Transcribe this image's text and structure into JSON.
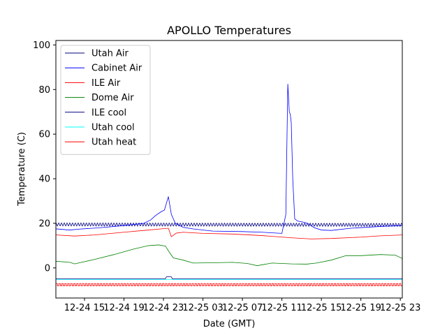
{
  "chart_data": {
    "type": "line",
    "title": "APOLLO Temperatures",
    "xlabel": "Date (GMT)",
    "ylabel": "Temperature (C)",
    "x_tick_labels": [
      "12-24 15",
      "12-24 19",
      "12-24 23",
      "12-25 03",
      "12-25 07",
      "12-25 11",
      "12-25 15",
      "12-25 19",
      "12-25 23"
    ],
    "x_tick_hours": [
      15,
      19,
      23,
      27,
      31,
      35,
      39,
      43,
      47
    ],
    "xlim_hours": [
      12.1,
      47.2
    ],
    "y_ticks": [
      0,
      20,
      40,
      60,
      80,
      100
    ],
    "ylim": [
      -13.5,
      102
    ],
    "grid": false,
    "legend_position": "top-left",
    "series": [
      {
        "name": "Utah Air",
        "color": "#000080",
        "style": "oscillating",
        "osc_amp": 0.7,
        "osc_period_h": 0.28,
        "points": [
          [
            12.1,
            19.5
          ],
          [
            47.2,
            19.3
          ]
        ]
      },
      {
        "name": "Cabinet Air",
        "color": "#0000ff",
        "points": [
          [
            12.1,
            17.5
          ],
          [
            13.5,
            17.0
          ],
          [
            14.5,
            17.4
          ],
          [
            16.5,
            18.0
          ],
          [
            19.0,
            19.0
          ],
          [
            21.0,
            20.0
          ],
          [
            21.7,
            21.5
          ],
          [
            22.2,
            23.5
          ],
          [
            22.7,
            25.0
          ],
          [
            23.1,
            26.0
          ],
          [
            23.5,
            32.0
          ],
          [
            23.8,
            24.0
          ],
          [
            24.2,
            20.0
          ],
          [
            25.0,
            18.2
          ],
          [
            26.0,
            17.5
          ],
          [
            28.0,
            16.5
          ],
          [
            31.0,
            16.3
          ],
          [
            33.0,
            16.0
          ],
          [
            34.5,
            15.6
          ],
          [
            35.0,
            15.5
          ],
          [
            35.4,
            24.0
          ],
          [
            35.6,
            82.5
          ],
          [
            35.75,
            70.0
          ],
          [
            35.85,
            69.0
          ],
          [
            35.95,
            65.0
          ],
          [
            36.1,
            40.0
          ],
          [
            36.3,
            22.0
          ],
          [
            36.6,
            21.0
          ],
          [
            37.2,
            20.5
          ],
          [
            37.6,
            20.0
          ],
          [
            38.3,
            18.0
          ],
          [
            39.0,
            17.0
          ],
          [
            40.0,
            16.8
          ],
          [
            42.0,
            17.8
          ],
          [
            45.0,
            18.6
          ],
          [
            47.2,
            19.0
          ]
        ]
      },
      {
        "name": "ILE Air",
        "color": "#ff0000",
        "points": [
          [
            12.1,
            14.8
          ],
          [
            14.0,
            14.3
          ],
          [
            16.0,
            14.8
          ],
          [
            19.0,
            16.0
          ],
          [
            21.0,
            16.8
          ],
          [
            23.0,
            17.6
          ],
          [
            23.5,
            17.8
          ],
          [
            23.8,
            14.0
          ],
          [
            24.3,
            15.6
          ],
          [
            25.0,
            16.0
          ],
          [
            27.0,
            15.5
          ],
          [
            30.0,
            15.2
          ],
          [
            33.0,
            14.5
          ],
          [
            36.0,
            13.5
          ],
          [
            38.0,
            13.0
          ],
          [
            40.0,
            13.2
          ],
          [
            43.0,
            13.8
          ],
          [
            45.0,
            14.4
          ],
          [
            47.2,
            14.8
          ]
        ]
      },
      {
        "name": "Dome Air",
        "color": "#008000",
        "points": [
          [
            12.1,
            3.0
          ],
          [
            13.5,
            2.5
          ],
          [
            14.0,
            1.8
          ],
          [
            16.0,
            3.8
          ],
          [
            18.0,
            6.0
          ],
          [
            20.0,
            8.5
          ],
          [
            21.5,
            10.0
          ],
          [
            22.5,
            10.3
          ],
          [
            23.2,
            9.8
          ],
          [
            23.6,
            7.0
          ],
          [
            24.0,
            4.5
          ],
          [
            25.0,
            3.5
          ],
          [
            26.0,
            2.2
          ],
          [
            28.0,
            2.3
          ],
          [
            30.0,
            2.5
          ],
          [
            31.5,
            2.0
          ],
          [
            32.5,
            1.0
          ],
          [
            34.0,
            2.2
          ],
          [
            36.0,
            1.8
          ],
          [
            37.5,
            1.7
          ],
          [
            38.5,
            2.2
          ],
          [
            40.0,
            3.5
          ],
          [
            41.5,
            5.5
          ],
          [
            43.0,
            5.5
          ],
          [
            45.0,
            6.0
          ],
          [
            46.5,
            5.7
          ],
          [
            47.2,
            4.2
          ]
        ]
      },
      {
        "name": "ILE cool",
        "color": "#000080",
        "points": [
          [
            12.1,
            -4.9
          ],
          [
            23.2,
            -4.9
          ],
          [
            23.3,
            -4.0
          ],
          [
            23.8,
            -4.0
          ],
          [
            23.9,
            -4.9
          ],
          [
            47.2,
            -4.9
          ]
        ]
      },
      {
        "name": "Utah cool",
        "color": "#00ffff",
        "points": [
          [
            12.1,
            -5.2
          ],
          [
            47.2,
            -5.2
          ]
        ]
      },
      {
        "name": "Utah heat",
        "color": "#ff0000",
        "style": "square_wave",
        "low": -8.0,
        "high": -7.0,
        "period_h": 0.3,
        "points": [
          [
            12.1,
            -7.5
          ],
          [
            47.2,
            -7.5
          ]
        ]
      }
    ]
  }
}
